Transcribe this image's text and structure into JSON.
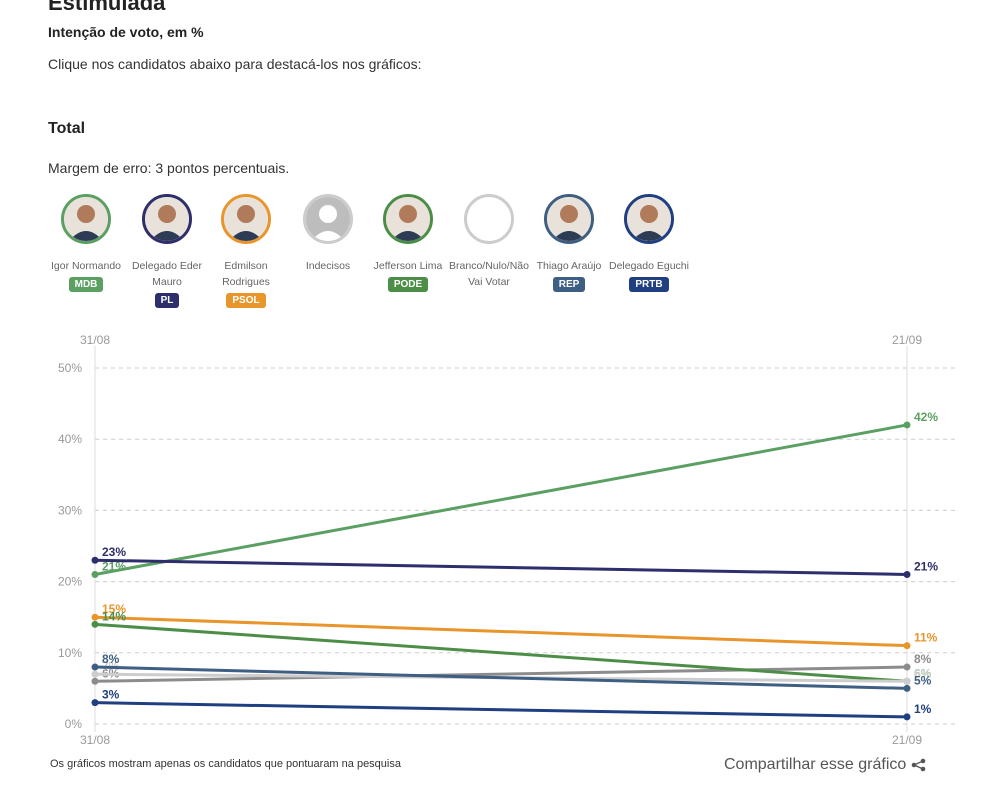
{
  "header": {
    "title": "Estimulada",
    "subtitle": "Intenção de voto, em %",
    "instruction": "Clique nos candidatos abaixo para destacá-los nos gráficos:"
  },
  "section": {
    "title": "Total",
    "margin": "Margem de erro: 3 pontos percentuais."
  },
  "chart_data": {
    "type": "line",
    "categories": [
      "31/08",
      "21/09"
    ],
    "ylim": [
      0,
      50
    ],
    "yticks": [
      {
        "value": 0,
        "label": "0%"
      },
      {
        "value": 10,
        "label": "10%"
      },
      {
        "value": 20,
        "label": "20%"
      },
      {
        "value": 30,
        "label": "30%"
      },
      {
        "value": 40,
        "label": "40%"
      },
      {
        "value": 50,
        "label": "50%"
      }
    ],
    "grid": true,
    "series": [
      {
        "name": "Igor Normando",
        "party": "MDB",
        "color": "#5b9f63",
        "values": [
          21,
          42
        ],
        "value_labels": [
          "21%",
          "42%"
        ]
      },
      {
        "name": "Delegado Eder Mauro",
        "party": "PL",
        "color": "#2d2e6b",
        "values": [
          23,
          21
        ],
        "value_labels": [
          "23%",
          "21%"
        ]
      },
      {
        "name": "Edmilson Rodrigues",
        "party": "PSOL",
        "color": "#e8952b",
        "values": [
          15,
          11
        ],
        "value_labels": [
          "15%",
          "11%"
        ]
      },
      {
        "name": "Indecisos",
        "color": "#8c8c8c",
        "values": [
          6,
          8
        ],
        "value_labels": [
          "6%",
          "8%"
        ]
      },
      {
        "name": "Jefferson Lima",
        "party": "PODE",
        "color": "#4c8e47",
        "values": [
          14,
          6
        ],
        "value_labels": [
          "14%",
          "6%"
        ]
      },
      {
        "name": "Branco/Nulo/Não Vai Votar",
        "color": "#cdcdcd",
        "values": [
          7,
          6
        ],
        "value_labels": [
          "7%",
          "6%"
        ]
      },
      {
        "name": "Thiago Araújo",
        "party": "REP",
        "color": "#3e5f83",
        "values": [
          8,
          5
        ],
        "value_labels": [
          "8%",
          "5%"
        ]
      },
      {
        "name": "Delegado Eguchi",
        "party": "PRTB",
        "color": "#1f3f80",
        "values": [
          3,
          1
        ],
        "value_labels": [
          "3%",
          "1%"
        ]
      }
    ]
  },
  "footnote": "Os gráficos mostram apenas os candidatos que pontuaram na pesquisa",
  "share": "Compartilhar esse gráfico"
}
